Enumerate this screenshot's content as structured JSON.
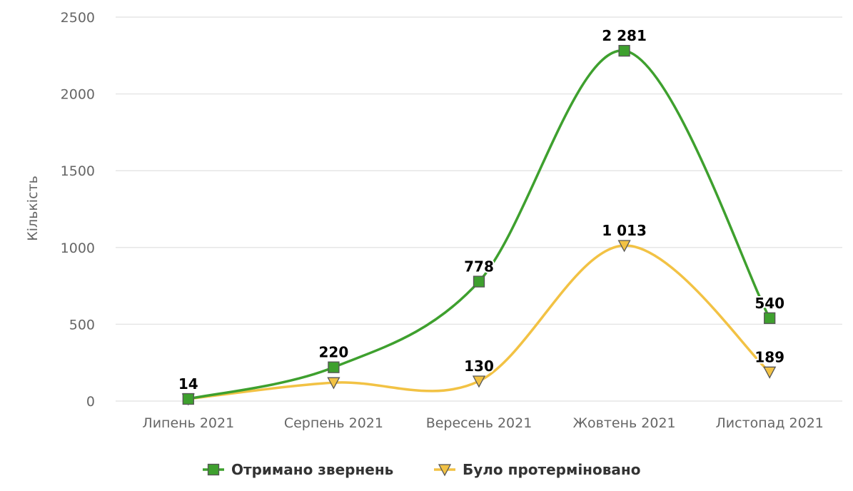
{
  "chart_data": {
    "type": "line",
    "categories": [
      "Липень 2021",
      "Серпень 2021",
      "Вересень 2021",
      "Жовтень 2021",
      "Листопад 2021"
    ],
    "series": [
      {
        "name": "Отримано звернень",
        "values": [
          14,
          220,
          778,
          2281,
          540
        ],
        "labels": [
          "14",
          "220",
          "778",
          "2 281",
          "540"
        ],
        "color": "#3ea02e",
        "marker": "square-icon"
      },
      {
        "name": "Було протерміновано",
        "values": [
          14,
          120,
          130,
          1013,
          189
        ],
        "labels": [
          "",
          "",
          "130",
          "1 013",
          "189"
        ],
        "color": "#f2c244",
        "marker": "triangle-down-icon"
      }
    ],
    "ylabel": "Кількість",
    "xlabel": "",
    "ylim": [
      0,
      2500
    ],
    "yticks": [
      0,
      500,
      1000,
      1500,
      2000,
      2500
    ],
    "ytick_labels": [
      "0",
      "500",
      "1000",
      "1500",
      "2000",
      "2500"
    ],
    "grid": true,
    "legend_position": "bottom-center"
  }
}
